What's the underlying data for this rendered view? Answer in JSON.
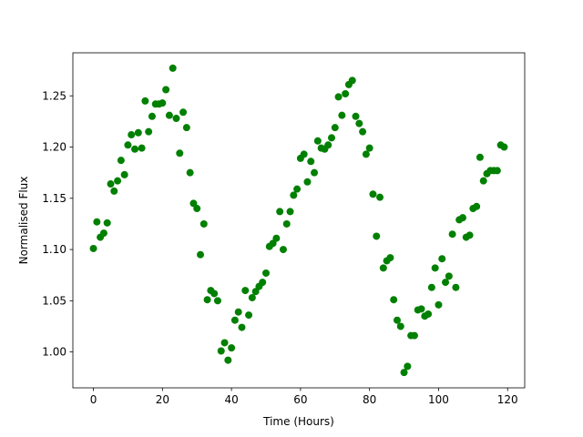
{
  "chart_data": {
    "type": "scatter",
    "x_label": "Time (Hours)",
    "y_label": "Normalised Flux",
    "x": [
      0,
      1,
      2,
      3,
      4,
      5,
      6,
      7,
      8,
      9,
      10,
      11,
      12,
      13,
      14,
      15,
      16,
      17,
      18,
      19,
      20,
      21,
      22,
      23,
      24,
      25,
      26,
      27,
      28,
      29,
      30,
      31,
      32,
      33,
      34,
      35,
      36,
      37,
      38,
      39,
      40,
      41,
      42,
      43,
      44,
      45,
      46,
      47,
      48,
      49,
      50,
      51,
      52,
      53,
      54,
      55,
      56,
      57,
      58,
      59,
      60,
      61,
      62,
      63,
      64,
      65,
      66,
      67,
      68,
      69,
      70,
      71,
      72,
      73,
      74,
      75,
      76,
      77,
      78,
      79,
      80,
      81,
      82,
      83,
      84,
      85,
      86,
      87,
      88,
      89,
      90,
      91,
      92,
      93,
      94,
      95,
      96,
      97,
      98,
      99,
      100,
      101,
      102,
      103,
      104,
      105,
      106,
      107,
      108,
      109,
      110,
      111,
      112,
      113,
      114,
      115,
      116,
      117,
      118,
      119
    ],
    "values": [
      1.101,
      1.127,
      1.112,
      1.116,
      1.126,
      1.164,
      1.157,
      1.167,
      1.187,
      1.173,
      1.202,
      1.212,
      1.198,
      1.214,
      1.199,
      1.245,
      1.215,
      1.23,
      1.242,
      1.242,
      1.243,
      1.256,
      1.231,
      1.277,
      1.228,
      1.194,
      1.234,
      1.219,
      1.175,
      1.145,
      1.14,
      1.095,
      1.125,
      1.051,
      1.06,
      1.057,
      1.05,
      1.001,
      1.009,
      0.992,
      1.004,
      1.031,
      1.039,
      1.024,
      1.06,
      1.036,
      1.053,
      1.059,
      1.064,
      1.068,
      1.077,
      1.103,
      1.106,
      1.111,
      1.137,
      1.1,
      1.125,
      1.137,
      1.153,
      1.159,
      1.189,
      1.193,
      1.166,
      1.186,
      1.175,
      1.206,
      1.199,
      1.198,
      1.202,
      1.209,
      1.219,
      1.249,
      1.231,
      1.252,
      1.261,
      1.265,
      1.23,
      1.223,
      1.215,
      1.193,
      1.199,
      1.154,
      1.113,
      1.151,
      1.082,
      1.089,
      1.092,
      1.051,
      1.031,
      1.025,
      0.98,
      0.986,
      1.016,
      1.016,
      1.041,
      1.042,
      1.035,
      1.037,
      1.063,
      1.082,
      1.046,
      1.091,
      1.068,
      1.074,
      1.115,
      1.063,
      1.129,
      1.131,
      1.112,
      1.114,
      1.14,
      1.142,
      1.19,
      1.167,
      1.174,
      1.177,
      1.177,
      1.177,
      1.202,
      1.2
    ],
    "color": "#008000",
    "xlim": [
      -5.95,
      124.95
    ],
    "xticks": [
      0,
      20,
      40,
      60,
      80,
      100,
      120
    ],
    "ylim": [
      0.965,
      1.292
    ],
    "yticks": [
      {
        "value": 1,
        "label": "1.00"
      },
      1.05,
      {
        "value": 1.1,
        "label": "1.10"
      },
      1.15,
      {
        "value": 1.2,
        "label": "1.20"
      },
      1.25
    ],
    "grid": false
  }
}
